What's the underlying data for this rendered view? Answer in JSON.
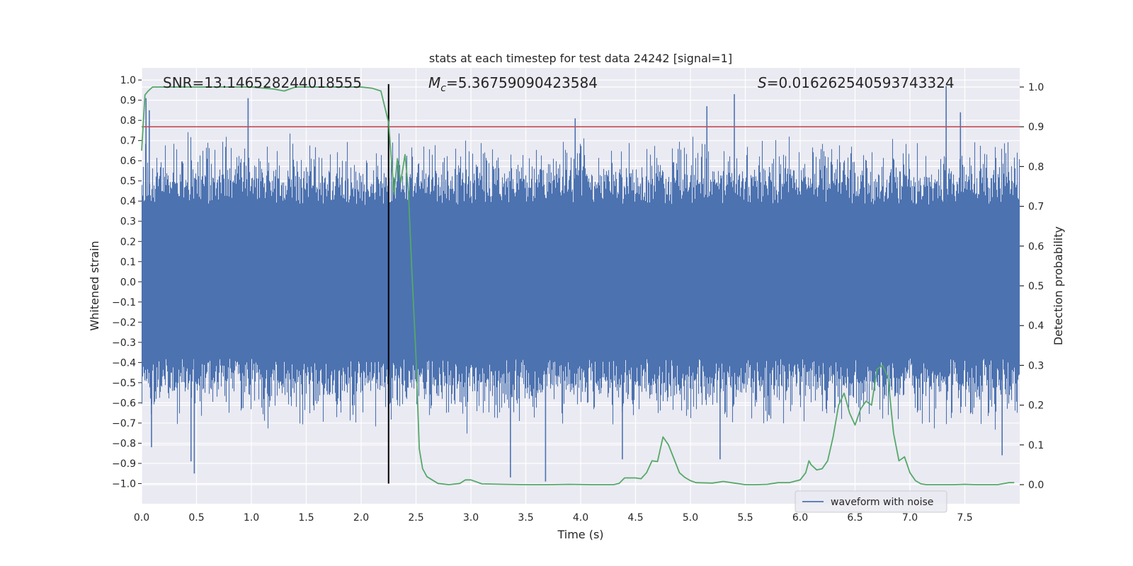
{
  "chart_data": {
    "type": "line",
    "title": "stats at each timestep for test data 24242 [signal=1]",
    "xlabel": "Time (s)",
    "ylabel": "Whitened strain",
    "y2label": "Detection probability",
    "xlim": [
      0.0,
      8.0
    ],
    "ylim": [
      -1.1,
      1.06
    ],
    "y2lim": [
      -0.048,
      1.048
    ],
    "x_ticks": [
      "0.0",
      "0.5",
      "1.0",
      "1.5",
      "2.0",
      "2.5",
      "3.0",
      "3.5",
      "4.0",
      "4.5",
      "5.0",
      "5.5",
      "6.0",
      "6.5",
      "7.0",
      "7.5"
    ],
    "x_tick_values": [
      0.0,
      0.5,
      1.0,
      1.5,
      2.0,
      2.5,
      3.0,
      3.5,
      4.0,
      4.5,
      5.0,
      5.5,
      6.0,
      6.5,
      7.0,
      7.5
    ],
    "y_ticks": [
      "1.0",
      "0.9",
      "0.8",
      "0.7",
      "0.6",
      "0.5",
      "0.4",
      "0.3",
      "0.2",
      "0.1",
      "0.0",
      "−0.1",
      "−0.2",
      "−0.3",
      "−0.4",
      "−0.5",
      "−0.6",
      "−0.7",
      "−0.8",
      "−0.9",
      "−1.0"
    ],
    "y_tick_values": [
      1.0,
      0.9,
      0.8,
      0.7,
      0.6,
      0.5,
      0.4,
      0.3,
      0.2,
      0.1,
      0.0,
      -0.1,
      -0.2,
      -0.3,
      -0.4,
      -0.5,
      -0.6,
      -0.7,
      -0.8,
      -0.9,
      -1.0
    ],
    "y2_ticks": [
      "1.0",
      "0.9",
      "0.8",
      "0.7",
      "0.6",
      "0.5",
      "0.4",
      "0.3",
      "0.2",
      "0.1",
      "0.0"
    ],
    "y2_tick_values": [
      1.0,
      0.9,
      0.8,
      0.7,
      0.6,
      0.5,
      0.4,
      0.3,
      0.2,
      0.1,
      0.0
    ],
    "annotations": {
      "snr": "SNR=13.146528244018555",
      "mc_symbol": "M",
      "mc_sub": "c",
      "mc_value": "=5.36759090423584",
      "s_symbol": "S",
      "s_value": "=0.016262540593743324"
    },
    "threshold": 0.9,
    "merger_time": 2.25,
    "merger_line_range": [
      -1.0,
      0.98
    ],
    "series": [
      {
        "name": "waveform with noise",
        "axis": "left",
        "style": "noise",
        "color": "#4c72b0",
        "n_samples": 4096,
        "core_amplitude": 0.38,
        "notable_peaks": [
          {
            "t": 0.04,
            "v": 0.91
          },
          {
            "t": 0.07,
            "v": 0.85
          },
          {
            "t": 0.09,
            "v": -0.82
          },
          {
            "t": 0.45,
            "v": -0.89
          },
          {
            "t": 0.48,
            "v": -0.95
          },
          {
            "t": 0.97,
            "v": 0.91
          },
          {
            "t": 2.25,
            "v": 0.73
          },
          {
            "t": 3.36,
            "v": -0.97
          },
          {
            "t": 3.68,
            "v": -0.99
          },
          {
            "t": 3.95,
            "v": 0.81
          },
          {
            "t": 4.38,
            "v": -0.88
          },
          {
            "t": 5.15,
            "v": 0.87
          },
          {
            "t": 5.27,
            "v": -0.88
          },
          {
            "t": 5.4,
            "v": 0.93
          },
          {
            "t": 7.33,
            "v": 0.97
          },
          {
            "t": 7.46,
            "v": 0.84
          },
          {
            "t": 7.84,
            "v": -0.86
          }
        ]
      },
      {
        "name": "detection probability",
        "axis": "right",
        "color": "#55a868",
        "x": [
          0.0,
          0.03,
          0.06,
          0.1,
          0.2,
          0.3,
          0.5,
          0.7,
          1.0,
          1.2,
          1.3,
          1.4,
          1.6,
          1.8,
          2.0,
          2.1,
          2.18,
          2.25,
          2.3,
          2.33,
          2.36,
          2.4,
          2.43,
          2.46,
          2.5,
          2.53,
          2.56,
          2.6,
          2.7,
          2.8,
          2.9,
          2.95,
          3.0,
          3.1,
          3.3,
          3.5,
          3.7,
          3.9,
          4.1,
          4.3,
          4.35,
          4.4,
          4.5,
          4.55,
          4.6,
          4.65,
          4.7,
          4.75,
          4.8,
          4.85,
          4.9,
          4.95,
          5.0,
          5.05,
          5.2,
          5.3,
          5.4,
          5.5,
          5.6,
          5.7,
          5.8,
          5.9,
          6.0,
          6.05,
          6.08,
          6.1,
          6.15,
          6.2,
          6.25,
          6.3,
          6.35,
          6.4,
          6.45,
          6.5,
          6.55,
          6.6,
          6.65,
          6.7,
          6.75,
          6.8,
          6.85,
          6.9,
          6.95,
          7.0,
          7.05,
          7.1,
          7.15,
          7.2,
          7.3,
          7.4,
          7.5,
          7.6,
          7.7,
          7.8,
          7.9,
          7.95
        ],
        "y": [
          0.84,
          0.98,
          0.99,
          1.0,
          1.0,
          1.0,
          1.0,
          1.0,
          1.0,
          0.995,
          0.99,
          1.0,
          1.0,
          1.0,
          1.0,
          0.997,
          0.99,
          0.91,
          0.73,
          0.82,
          0.76,
          0.83,
          0.74,
          0.55,
          0.32,
          0.09,
          0.04,
          0.02,
          0.003,
          0.0,
          0.003,
          0.012,
          0.012,
          0.002,
          0.001,
          0.0,
          0.0,
          0.001,
          0.0,
          0.0,
          0.003,
          0.017,
          0.017,
          0.015,
          0.03,
          0.06,
          0.058,
          0.12,
          0.1,
          0.065,
          0.03,
          0.018,
          0.01,
          0.005,
          0.004,
          0.008,
          0.004,
          0.0,
          0.0,
          0.001,
          0.005,
          0.005,
          0.012,
          0.03,
          0.06,
          0.05,
          0.037,
          0.04,
          0.06,
          0.12,
          0.2,
          0.23,
          0.18,
          0.15,
          0.19,
          0.21,
          0.2,
          0.29,
          0.3,
          0.27,
          0.13,
          0.06,
          0.07,
          0.03,
          0.01,
          0.002,
          0.0,
          0.0,
          0.0,
          0.0,
          0.001,
          0.0,
          0.0,
          0.0,
          0.005,
          0.005
        ]
      }
    ],
    "legend": {
      "placement": "bottom-right",
      "entries": [
        "waveform with noise"
      ]
    },
    "colors": {
      "background": "#eaeaf2",
      "grid": "#ffffff",
      "waveform": "#4c72b0",
      "probability": "#55a868",
      "threshold": "#c44e52",
      "merger_line": "#000000"
    }
  }
}
